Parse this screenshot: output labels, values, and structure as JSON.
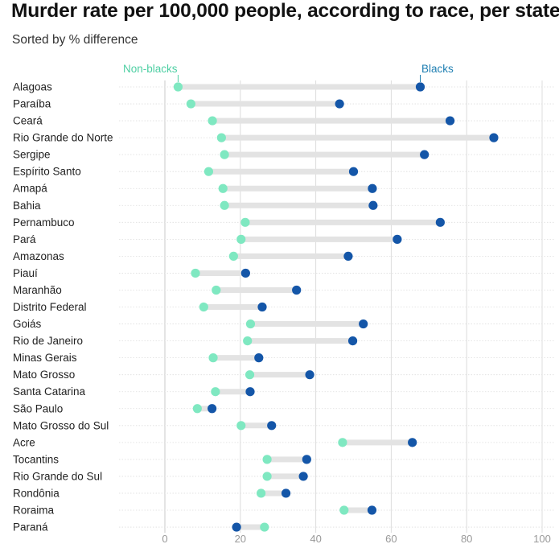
{
  "title": "Murder rate per 100,000 people, according to race, per state",
  "subtitle": "Sorted by % difference",
  "colors": {
    "non_blacks": "#7fe8c1",
    "blacks": "#1456a8",
    "bar": "#e3e3e3",
    "grid": "#dcdcdc",
    "axis": "#c8c8c8"
  },
  "chart_data": {
    "type": "dot-range",
    "title": "Murder rate per 100,000 people, according to race, per state",
    "subtitle": "Sorted by % difference",
    "xlabel": "",
    "ylabel": "",
    "xlim": [
      0,
      100
    ],
    "x_ticks": [
      0,
      20,
      40,
      60,
      80,
      100
    ],
    "series_names": {
      "non_blacks": "Non-blacks",
      "blacks": "Blacks"
    },
    "categories": [
      "Alagoas",
      "Paraíba",
      "Ceará",
      "Rio Grande do Norte",
      "Sergipe",
      "Espírito Santo",
      "Amapá",
      "Bahia",
      "Pernambuco",
      "Pará",
      "Amazonas",
      "Piauí",
      "Maranhão",
      "Distrito Federal",
      "Goiás",
      "Rio de Janeiro",
      "Minas Gerais",
      "Mato Grosso",
      "Santa Catarina",
      "São Paulo",
      "Mato Grosso do Sul",
      "Acre",
      "Tocantins",
      "Rio Grande do Sul",
      "Rondônia",
      "Roraima",
      "Paraná"
    ],
    "series": [
      {
        "name": "Non-blacks",
        "values": [
          3.5,
          6.9,
          12.6,
          15.0,
          15.8,
          11.6,
          15.4,
          15.8,
          21.3,
          20.2,
          18.2,
          8.1,
          13.6,
          10.3,
          22.7,
          21.9,
          12.8,
          22.5,
          13.4,
          8.6,
          20.2,
          47.1,
          27.1,
          27.1,
          25.5,
          47.5,
          26.4
        ]
      },
      {
        "name": "Blacks",
        "values": [
          67.7,
          46.3,
          75.6,
          87.2,
          68.8,
          50.0,
          55.0,
          55.2,
          73.0,
          61.6,
          48.6,
          21.4,
          34.9,
          25.8,
          52.6,
          49.8,
          24.9,
          38.4,
          22.6,
          12.5,
          28.3,
          65.6,
          37.6,
          36.7,
          32.1,
          54.9,
          19.0
        ]
      }
    ]
  }
}
